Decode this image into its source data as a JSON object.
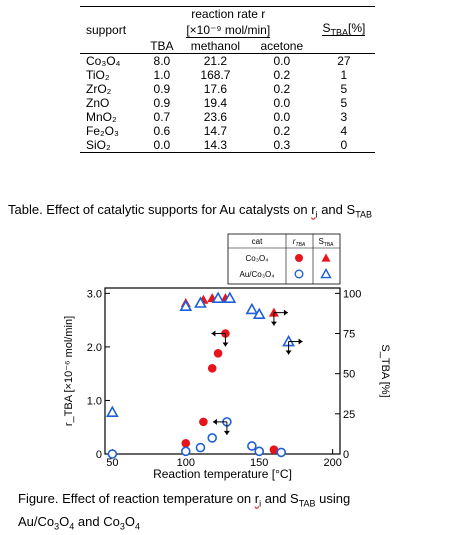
{
  "table": {
    "col_support": "support",
    "col_rate_line1": "reaction rate r",
    "col_rate_line2": "[×10⁻⁹ mol/min]",
    "col_stba": "S",
    "col_stba_sub": "TBA",
    "col_stba_unit": "[%]",
    "sub_tba": "TBA",
    "sub_methanol": "methanol",
    "sub_acetone": "acetone",
    "rows": [
      {
        "support": "Co₃O₄",
        "tba": "8.0",
        "methanol": "21.2",
        "acetone": "0.0",
        "stba": "27"
      },
      {
        "support": "TiO₂",
        "tba": "1.0",
        "methanol": "168.7",
        "acetone": "0.2",
        "stba": "1"
      },
      {
        "support": "ZrO₂",
        "tba": "0.9",
        "methanol": "17.6",
        "acetone": "0.2",
        "stba": "5"
      },
      {
        "support": "ZnO",
        "tba": "0.9",
        "methanol": "19.4",
        "acetone": "0.0",
        "stba": "5"
      },
      {
        "support": "MnO₂",
        "tba": "0.7",
        "methanol": "23.6",
        "acetone": "0.0",
        "stba": "3"
      },
      {
        "support": "Fe₂O₃",
        "tba": "0.6",
        "methanol": "14.7",
        "acetone": "0.2",
        "stba": "4"
      },
      {
        "support": "SiO₂",
        "tba": "0.0",
        "methanol": "14.3",
        "acetone": "0.3",
        "stba": "0"
      }
    ]
  },
  "table_caption": {
    "text": "Table.  Effect of catalytic supports for  Au catalysts on ",
    "ri": "r",
    "ri_sub": "i",
    "and": " and S",
    "and_sub": "TAB"
  },
  "chart_data": {
    "type": "scatter",
    "xlabel": "Reaction temperature [°C]",
    "ylabel_left": "r_TBA [×10⁻⁶ mol/min]",
    "ylabel_right": "S_TBA [%]",
    "xlim": [
      45,
      205
    ],
    "ylim_left": [
      0,
      3.1
    ],
    "ylim_right": [
      0,
      103.33
    ],
    "x_ticks": [
      "50",
      "100",
      "150",
      "200"
    ],
    "y_left_ticks": [
      "0",
      "1.0",
      "2.0",
      "3.0"
    ],
    "y_right_ticks": [
      "0",
      "25",
      "50",
      "75",
      "100"
    ],
    "legend": {
      "header": "cat",
      "col_r": "r",
      "col_r_sub": "TBA",
      "col_s": "S",
      "col_s_sub": "TBA",
      "rows": [
        "Co₃O₄",
        "Au/Co₃O₄"
      ]
    },
    "series": [
      {
        "name": "Co₃O₄ r_TBA",
        "marker": "filled-circle",
        "color": "#e8141c",
        "x": [
          100,
          112,
          118,
          122,
          127,
          160
        ],
        "y": [
          0.2,
          0.6,
          1.6,
          1.88,
          2.25,
          0.08
        ]
      },
      {
        "name": "Co₃O₄ S_TBA",
        "marker": "filled-triangle",
        "color": "#e8141c",
        "x": [
          100,
          112,
          118,
          122,
          127,
          160
        ],
        "y": [
          94,
          96,
          97,
          97,
          97,
          88
        ]
      },
      {
        "name": "Au/Co₃O₄ r_TBA",
        "marker": "open-circle",
        "color": "#1f5fd8",
        "x": [
          50,
          100,
          110,
          118,
          128,
          145,
          150,
          165
        ],
        "y": [
          0.0,
          0.05,
          0.12,
          0.3,
          0.6,
          0.15,
          0.05,
          0.03
        ]
      },
      {
        "name": "Au/Co₃O₄ S_TBA",
        "marker": "open-triangle",
        "color": "#1f5fd8",
        "x": [
          50,
          100,
          110,
          122,
          130,
          145,
          150,
          170
        ],
        "y": [
          26,
          92,
          94,
          97,
          97,
          90,
          87,
          70
        ]
      }
    ],
    "annotations": [
      {
        "x": 127,
        "y": 2.25,
        "arrow": "left-down",
        "axis": "left"
      },
      {
        "x": 160,
        "y": 88,
        "arrow": "right-down",
        "axis": "right"
      },
      {
        "x": 170,
        "y": 70,
        "arrow": "right-down",
        "axis": "right"
      },
      {
        "x": 128,
        "y": 0.6,
        "arrow": "left-down",
        "axis": "left"
      }
    ]
  },
  "fig_caption": {
    "line1_a": "Figure.  Effect of reaction temperature on ",
    "ri": "r",
    "ri_sub": "i",
    "line1_b": " and S",
    "line1_b_sub": "TAB",
    "line1_c": " using",
    "line2_a": "Au/Co",
    "line2_sub1": "3",
    "line2_b": "O",
    "line2_sub2": "4",
    "line2_c": " and Co",
    "line2_sub3": "3",
    "line2_d": "O",
    "line2_sub4": "4"
  }
}
